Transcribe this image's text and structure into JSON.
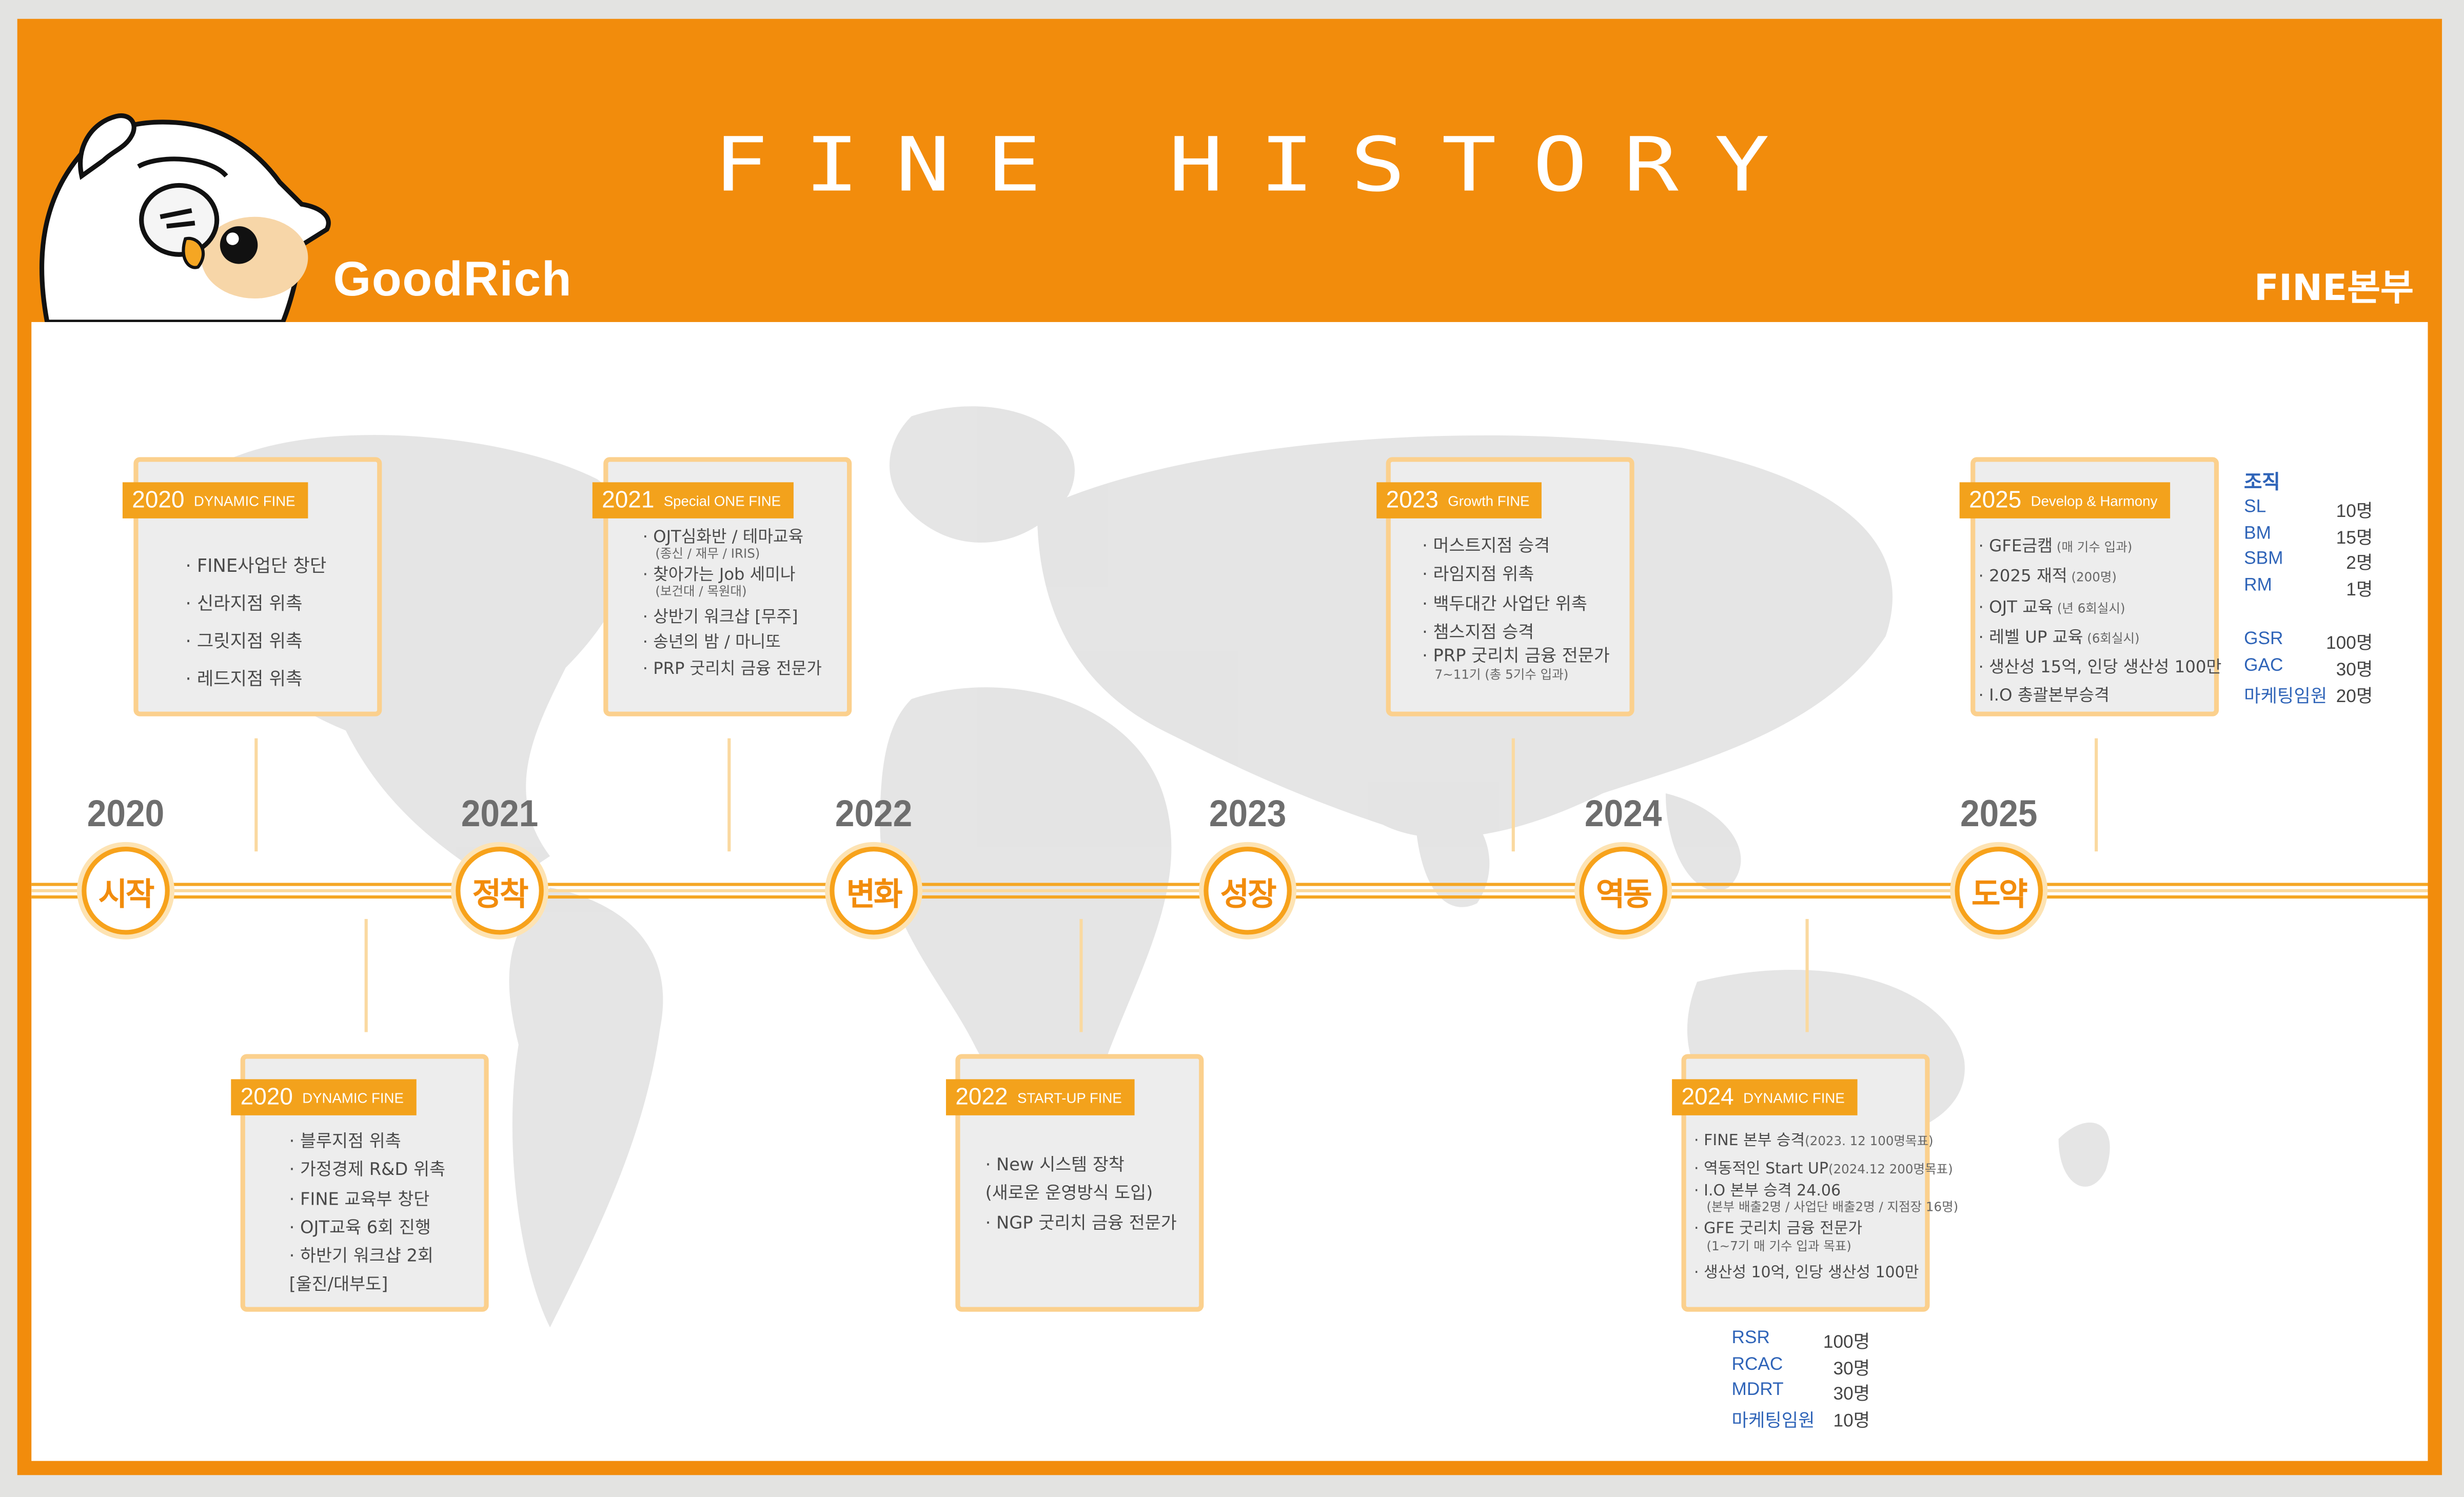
{
  "header": {
    "title": "FINE HISTORY",
    "brand": "GoodRich",
    "department": "FINE본부"
  },
  "timeline": [
    {
      "year": "2020",
      "word": "시작"
    },
    {
      "year": "2021",
      "word": "정착"
    },
    {
      "year": "2022",
      "word": "변화"
    },
    {
      "year": "2023",
      "word": "성장"
    },
    {
      "year": "2024",
      "word": "역동"
    },
    {
      "year": "2025",
      "word": "도약"
    }
  ],
  "cards": [
    {
      "year": "2020",
      "tag": "DYNAMIC FINE",
      "items": [
        {
          "text": "· FINE사업단 창단"
        },
        {
          "text": "· 신라지점 위촉"
        },
        {
          "text": "· 그릿지점 위촉"
        },
        {
          "text": "· 레드지점  위촉"
        }
      ]
    },
    {
      "year": "2021",
      "tag": "Special ONE FINE",
      "items": [
        {
          "text": "· OJT심화반 / 테마교육",
          "sub": "(종신 / 재무 / IRIS)"
        },
        {
          "text": "· 찾아가는 Job 세미나",
          "sub": "(보건대 / 목원대)"
        },
        {
          "text": "· 상반기 워크샵 [무주]"
        },
        {
          "text": "· 송년의 밤 / 마니또"
        },
        {
          "text": "· PRP 굿리치 금융 전문가"
        }
      ]
    },
    {
      "year": "2023",
      "tag": "Growth FINE",
      "items": [
        {
          "text": "· 머스트지점 승격"
        },
        {
          "text": "· 라임지점 위촉"
        },
        {
          "text": "· 백두대간 사업단 위촉"
        },
        {
          "text": "· 챔스지점 승격"
        },
        {
          "text": "· PRP 굿리치 금융 전문가",
          "sub": "7~11기 (총 5기수 입과)"
        }
      ]
    },
    {
      "year": "2025",
      "tag": "Develop & Harmony",
      "items": [
        {
          "text": "· GFE금캠",
          "small": " (매 기수 입과)"
        },
        {
          "text": "· 2025 재적",
          "small": " (200명)"
        },
        {
          "text": "· OJT 교육",
          "small": " (년 6회실시)"
        },
        {
          "text": "· 레벨 UP 교육",
          "small": " (6회실시)"
        },
        {
          "text": "· 생산성 15억, 인당 생산성 100만"
        },
        {
          "text": "· I.O 총괄본부승격"
        }
      ]
    },
    {
      "year": "2020",
      "tag": "DYNAMIC FINE",
      "items": [
        {
          "text": "· 블루지점 위촉"
        },
        {
          "text": "· 가정경제 R&D 위촉"
        },
        {
          "text": "· FINE 교육부 창단"
        },
        {
          "text": "· OJT교육 6회 진행"
        },
        {
          "text": "· 하반기 워크샵 2회"
        },
        {
          "text": "  [울진/대부도]"
        }
      ]
    },
    {
      "year": "2022",
      "tag": "START-UP FINE",
      "items": [
        {
          "text": "· New 시스템 장착"
        },
        {
          "text": "(새로운 운영방식 도입)"
        },
        {
          "text": "· NGP 굿리치 금융 전문가"
        }
      ]
    },
    {
      "year": "2024",
      "tag": "DYNAMIC FINE",
      "items": [
        {
          "text": "· FINE 본부 승격",
          "small": "(2023. 12 100명목표)"
        },
        {
          "text": "· 역동적인 Start UP",
          "small": "(2024.12 200명목표)"
        },
        {
          "text": "· I.O 본부 승격 24.06",
          "sub": "(본부 배출2명 / 사업단 배출2명 / 지점장 16명)"
        },
        {
          "text": "· GFE 굿리치 금융 전문가",
          "sub": "(1~7기 매 기수 입과 목표)"
        },
        {
          "text": "· 생산성 10억, 인당 생산성 100만"
        }
      ]
    }
  ],
  "org_2025": {
    "heading": "조직",
    "groups": [
      [
        {
          "k": "SL",
          "v": "10명"
        },
        {
          "k": "BM",
          "v": "15명"
        },
        {
          "k": "SBM",
          "v": "2명"
        },
        {
          "k": "RM",
          "v": "1명"
        }
      ],
      [
        {
          "k": "GSR",
          "v": "100명"
        },
        {
          "k": "GAC",
          "v": "30명"
        },
        {
          "k": "마케팅임원",
          "v": "20명"
        }
      ]
    ]
  },
  "org_2024": [
    {
      "k": "RSR",
      "v": "100명"
    },
    {
      "k": "RCAC",
      "v": "30명"
    },
    {
      "k": "MDRT",
      "v": "30명"
    },
    {
      "k": "마케팅임원",
      "v": "10명"
    }
  ]
}
